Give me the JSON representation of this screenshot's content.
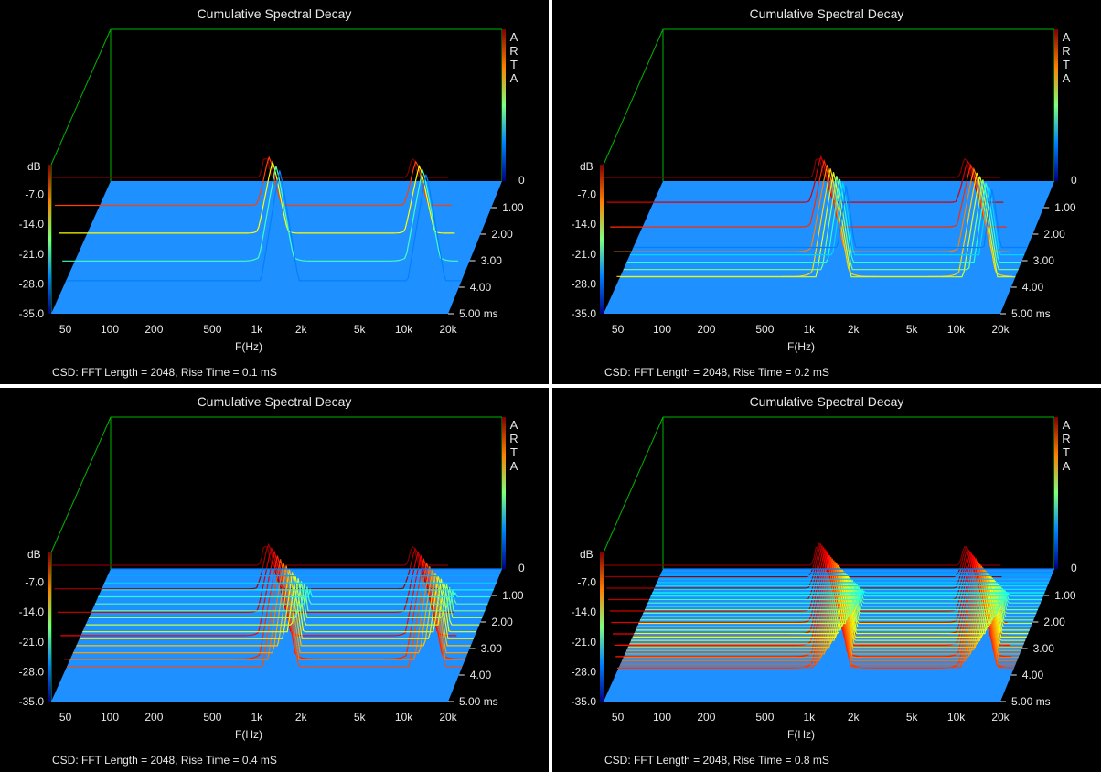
{
  "colors": {
    "background": "#000000",
    "floor": "#1e90ff",
    "frame": "#00b400"
  },
  "panels": [
    {
      "chart_data": {
        "type": "surface",
        "title": "Cumulative Spectral Decay",
        "xlabel": "F(Hz)",
        "ylabel": "dB",
        "zlabel": "ms",
        "xscale": "log",
        "xlim": [
          40,
          20000
        ],
        "ylim": [
          -35,
          0
        ],
        "zlim": [
          0,
          5
        ],
        "x_ticks": [
          "50",
          "100",
          "200",
          "500",
          "1k",
          "2k",
          "5k",
          "10k",
          "20k"
        ],
        "y_ticks": [
          "-7.0",
          "-14.0",
          "-21.0",
          "-28.0",
          "-35.0"
        ],
        "y_top_tick": "0",
        "z_ticks": [
          "1.00",
          "2.00",
          "3.00",
          "4.00",
          "5.00 ms"
        ],
        "brand": [
          "A",
          "R",
          "T",
          "A"
        ],
        "caption": "CSD: FFT Length = 2048, Rise Time = 0.1 mS",
        "resonances_hz": [
          1150,
          11500
        ],
        "slices": 5
      }
    },
    {
      "chart_data": {
        "type": "surface",
        "title": "Cumulative Spectral Decay",
        "xlabel": "F(Hz)",
        "ylabel": "dB",
        "zlabel": "ms",
        "xscale": "log",
        "xlim": [
          40,
          20000
        ],
        "ylim": [
          -35,
          0
        ],
        "zlim": [
          0,
          5
        ],
        "x_ticks": [
          "50",
          "100",
          "200",
          "500",
          "1k",
          "2k",
          "5k",
          "10k",
          "20k"
        ],
        "y_ticks": [
          "-7.0",
          "-14.0",
          "-21.0",
          "-28.0",
          "-35.0"
        ],
        "y_top_tick": "0",
        "z_ticks": [
          "1.00",
          "2.00",
          "3.00",
          "4.00",
          "5.00 ms"
        ],
        "brand": [
          "A",
          "R",
          "T",
          "A"
        ],
        "caption": "CSD: FFT Length = 2048, Rise Time = 0.2 mS",
        "resonances_hz": [
          1150,
          11500
        ],
        "slices": 10
      }
    },
    {
      "chart_data": {
        "type": "surface",
        "title": "Cumulative Spectral Decay",
        "xlabel": "F(Hz)",
        "ylabel": "dB",
        "zlabel": "ms",
        "xscale": "log",
        "xlim": [
          40,
          20000
        ],
        "ylim": [
          -35,
          0
        ],
        "zlim": [
          0,
          5
        ],
        "x_ticks": [
          "50",
          "100",
          "200",
          "500",
          "1k",
          "2k",
          "5k",
          "10k",
          "20k"
        ],
        "y_ticks": [
          "-7.0",
          "-14.0",
          "-21.0",
          "-28.0",
          "-35.0"
        ],
        "y_top_tick": "0",
        "z_ticks": [
          "1.00",
          "2.00",
          "3.00",
          "4.00",
          "5.00 ms"
        ],
        "brand": [
          "A",
          "R",
          "T",
          "A"
        ],
        "caption": "CSD: FFT Length = 2048, Rise Time = 0.4 mS",
        "resonances_hz": [
          1150,
          11500
        ],
        "slices": 20
      }
    },
    {
      "chart_data": {
        "type": "surface",
        "title": "Cumulative Spectral Decay",
        "xlabel": "F(Hz)",
        "ylabel": "dB",
        "zlabel": "ms",
        "xscale": "log",
        "xlim": [
          40,
          20000
        ],
        "ylim": [
          -35,
          0
        ],
        "zlim": [
          0,
          5
        ],
        "x_ticks": [
          "50",
          "100",
          "200",
          "500",
          "1k",
          "2k",
          "5k",
          "10k",
          "20k"
        ],
        "y_ticks": [
          "-7.0",
          "-14.0",
          "-21.0",
          "-28.0",
          "-35.0"
        ],
        "y_top_tick": "0",
        "z_ticks": [
          "1.00",
          "2.00",
          "3.00",
          "4.00",
          "5.00 ms"
        ],
        "brand": [
          "A",
          "R",
          "T",
          "A"
        ],
        "caption": "CSD: FFT Length = 2048, Rise Time = 0.8 mS",
        "resonances_hz": [
          1150,
          11500
        ],
        "slices": 40
      }
    }
  ]
}
